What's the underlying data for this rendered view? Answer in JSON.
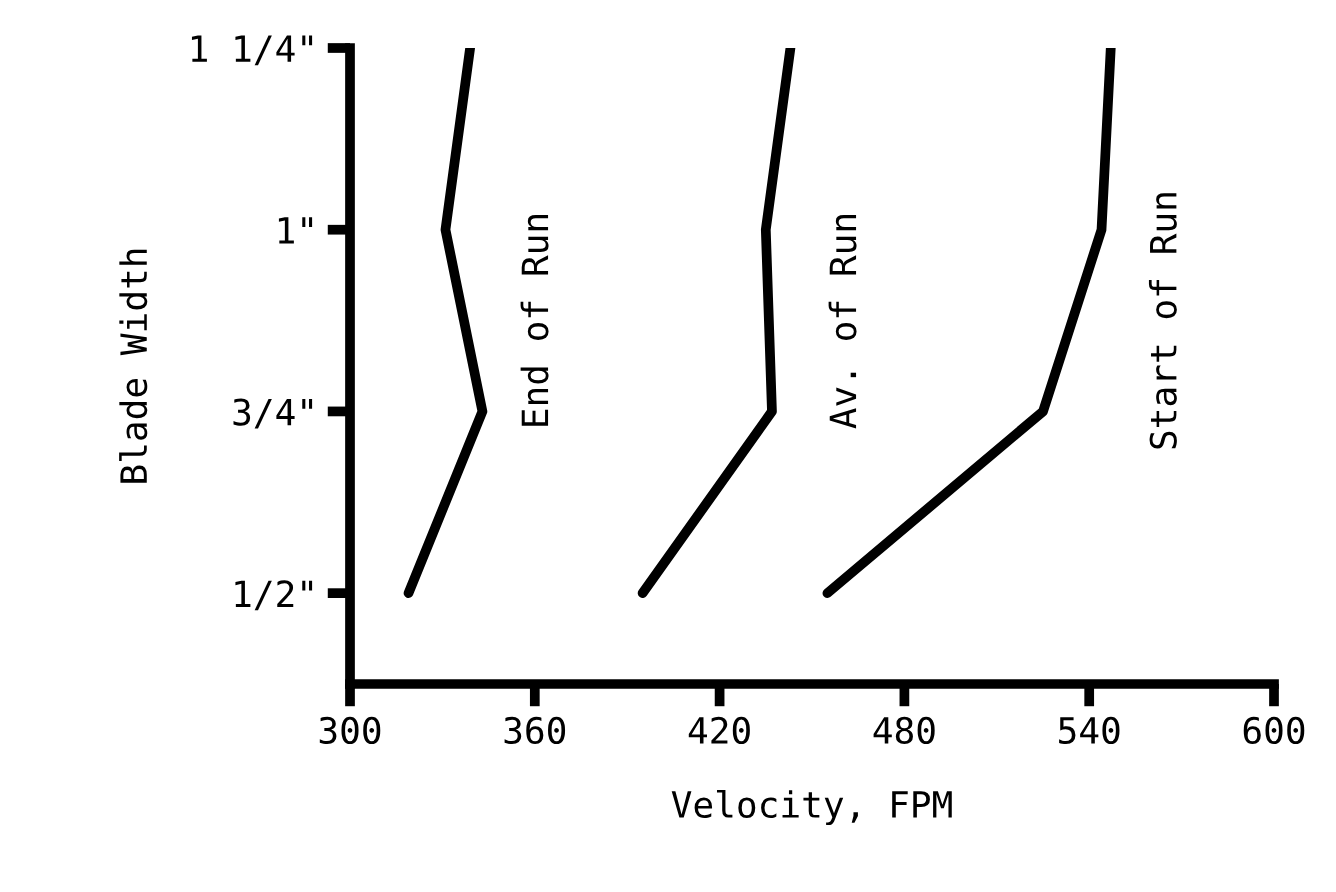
{
  "chart_data": {
    "type": "line",
    "orientation": "horizontal",
    "xlabel": "Velocity, FPM",
    "ylabel": "Blade Width",
    "xlim": [
      300,
      600
    ],
    "xticks": [
      300,
      360,
      420,
      480,
      540,
      600
    ],
    "categories": [
      "1 1/4\"",
      "1\"",
      "3/4\"",
      "1/2\""
    ],
    "grid": false,
    "legend": false,
    "marker": "none",
    "line_style": "solid",
    "series": [
      {
        "name": "End of Run",
        "color": "#000000",
        "values": [
          339,
          331,
          343,
          319
        ]
      },
      {
        "name": "Av. of Run",
        "color": "#000000",
        "values": [
          443,
          435,
          437,
          395
        ]
      },
      {
        "name": "Start of Run",
        "color": "#000000",
        "values": [
          547,
          544,
          525,
          455
        ]
      }
    ]
  }
}
